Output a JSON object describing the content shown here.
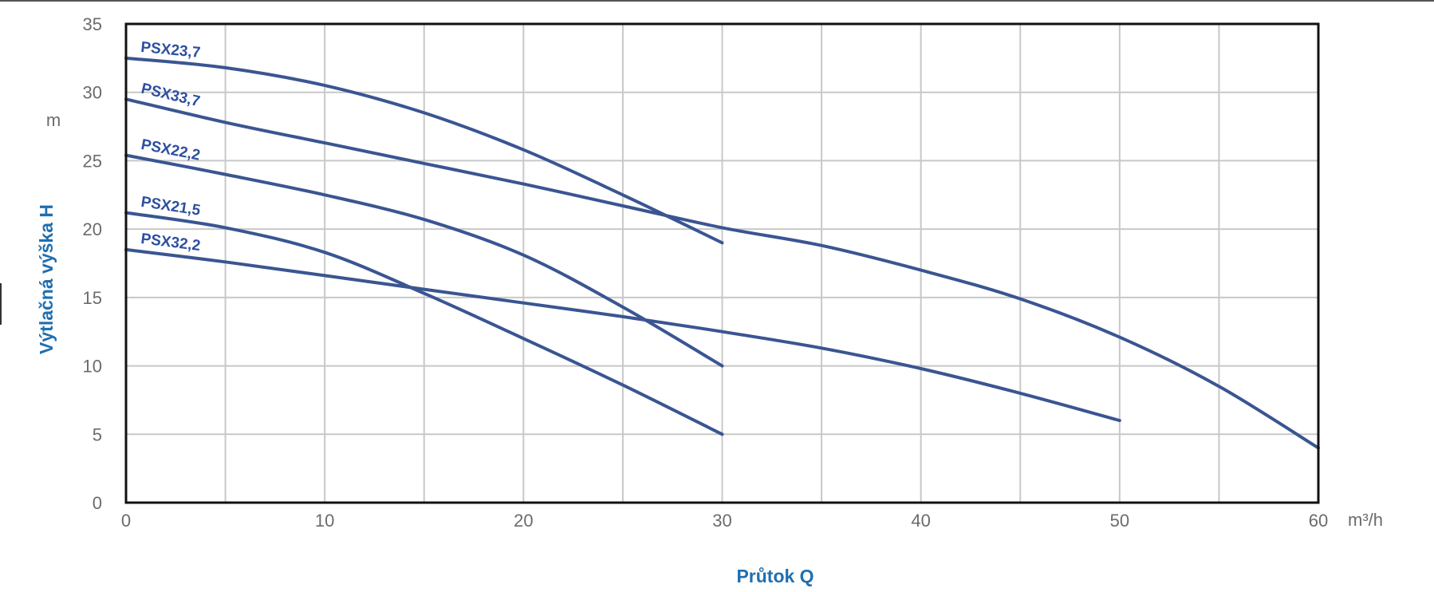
{
  "chart_data": {
    "type": "line",
    "title": "",
    "xlabel": "Průtok Q",
    "ylabel": "Výtlačná výška H",
    "x_unit": "m³/h",
    "y_unit": "m",
    "xlim": [
      0,
      60
    ],
    "ylim": [
      0,
      35
    ],
    "x_ticks": [
      "0",
      "10",
      "20",
      "30",
      "40",
      "50",
      "60"
    ],
    "y_ticks": [
      "0",
      "5",
      "10",
      "15",
      "20",
      "25",
      "30",
      "35"
    ],
    "grid": true,
    "legend": "inline labels at curve starts",
    "colors": {
      "line": "#3a5592",
      "label": "#2e4fa0",
      "axis_title": "#1f6fb0",
      "grid": "#c8c8c8",
      "frame": "#111111"
    },
    "series": [
      {
        "name": "PSX23,7",
        "x": [
          0,
          5,
          10,
          15,
          20,
          25,
          30
        ],
        "y": [
          32.5,
          31.8,
          30.5,
          28.5,
          25.8,
          22.5,
          19.0
        ]
      },
      {
        "name": "PSX33,7",
        "x": [
          0,
          5,
          10,
          15,
          20,
          25,
          30,
          35,
          40,
          45,
          50,
          55,
          60
        ],
        "y": [
          29.5,
          27.8,
          26.3,
          24.8,
          23.3,
          21.7,
          20.1,
          18.8,
          17.0,
          14.9,
          12.1,
          8.5,
          4.0
        ]
      },
      {
        "name": "PSX22,2",
        "x": [
          0,
          5,
          10,
          15,
          20,
          25,
          30
        ],
        "y": [
          25.4,
          24.0,
          22.5,
          20.7,
          18.1,
          14.3,
          10.0
        ]
      },
      {
        "name": "PSX21,5",
        "x": [
          0,
          5,
          10,
          15,
          20,
          25,
          30
        ],
        "y": [
          21.2,
          20.1,
          18.3,
          15.3,
          12.0,
          8.6,
          5.0
        ]
      },
      {
        "name": "PSX32,2",
        "x": [
          0,
          5,
          10,
          15,
          20,
          25,
          30,
          35,
          40,
          45,
          50
        ],
        "y": [
          18.5,
          17.6,
          16.6,
          15.6,
          14.6,
          13.6,
          12.5,
          11.3,
          9.8,
          8.0,
          6.0
        ]
      }
    ]
  }
}
